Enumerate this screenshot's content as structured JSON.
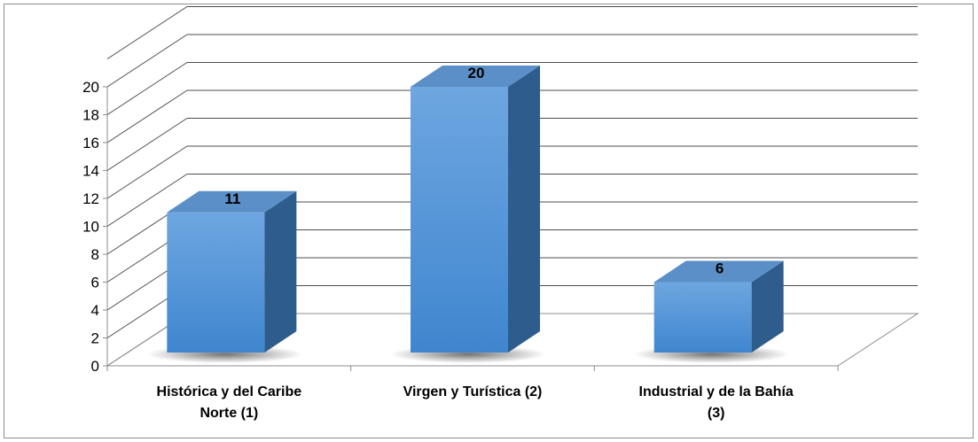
{
  "chart_data": {
    "type": "bar",
    "three_d": true,
    "categories": [
      [
        "Histórica y del Caribe",
        "Norte (1)"
      ],
      [
        "Virgen y Turística (2)"
      ],
      [
        "Industrial y de la Bahía",
        "(3)"
      ]
    ],
    "values": [
      11,
      20,
      6
    ],
    "data_labels": [
      "11",
      "20",
      "6"
    ],
    "ylim": [
      0,
      20
    ],
    "y_ticks": [
      "0",
      "2",
      "4",
      "6",
      "8",
      "10",
      "12",
      "14",
      "16",
      "18",
      "20"
    ],
    "grid": true,
    "legend": "none",
    "colors": {
      "bar_front_top": "#6ea6e0",
      "bar_front_bottom": "#3f86cf",
      "bar_side": "#2e5c8c",
      "bar_top": "#5b8fc7",
      "grid": "#4d4d4d"
    }
  }
}
